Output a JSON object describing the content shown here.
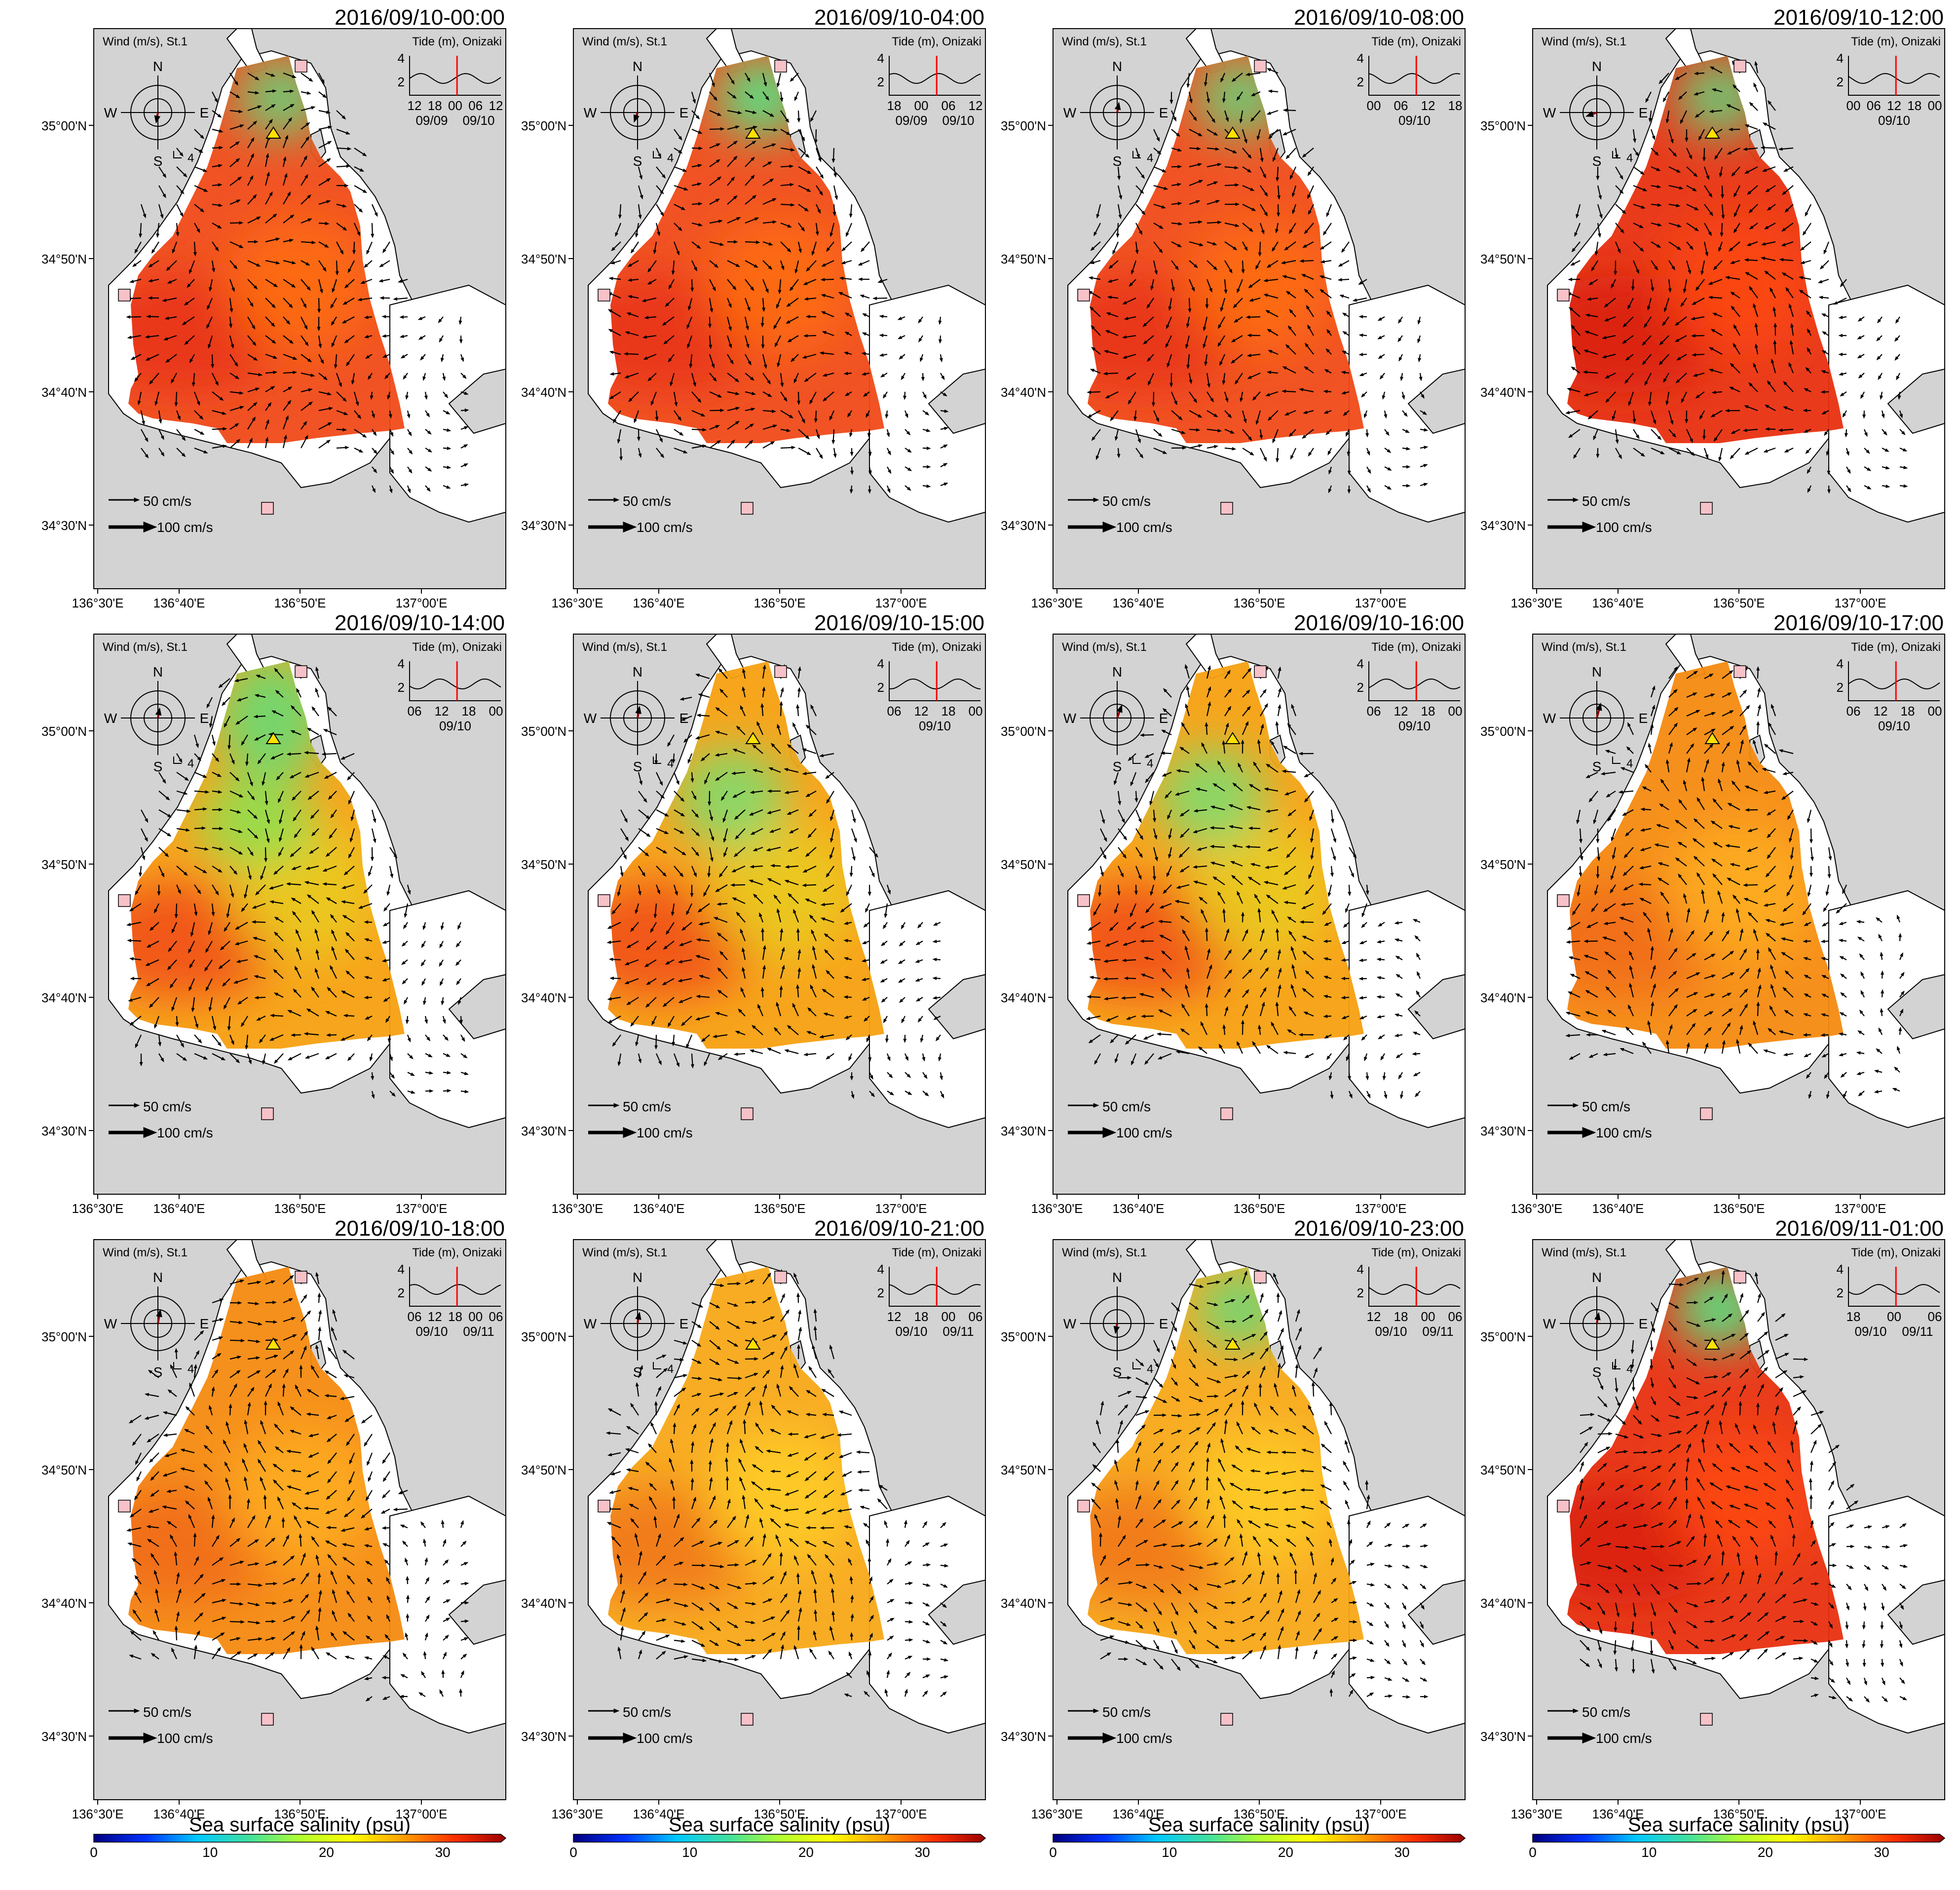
{
  "figure": {
    "panels": [
      {
        "title": "2016/09/10-00:00",
        "wind_dir": 190,
        "wind_mag": 1.0,
        "tide_ticks": [
          "12",
          "18",
          "00",
          "06",
          "12"
        ],
        "tide_dates": [
          "09/09",
          "09/10"
        ],
        "salinity_profile": "high-north-low",
        "low_spot": "top"
      },
      {
        "title": "2016/09/10-04:00",
        "wind_dir": 200,
        "wind_mag": 0.9,
        "tide_ticks": [
          "18",
          "00",
          "06",
          "12"
        ],
        "tide_dates": [
          "09/09",
          "09/10"
        ],
        "salinity_profile": "high-north-low",
        "low_spot": "top-strong"
      },
      {
        "title": "2016/09/10-08:00",
        "wind_dir": 10,
        "wind_mag": 0.9,
        "tide_ticks": [
          "00",
          "06",
          "12",
          "18"
        ],
        "tide_dates": [
          "09/10"
        ],
        "salinity_profile": "high-north-low",
        "low_spot": "top"
      },
      {
        "title": "2016/09/10-12:00",
        "wind_dir": 250,
        "wind_mag": 1.2,
        "tide_ticks": [
          "00",
          "06",
          "12",
          "18",
          "00"
        ],
        "tide_dates": [
          "09/10"
        ],
        "salinity_profile": "very-high",
        "low_spot": "top"
      },
      {
        "title": "2016/09/10-14:00",
        "wind_dir": 10,
        "wind_mag": 0.9,
        "tide_ticks": [
          "06",
          "12",
          "18",
          "00"
        ],
        "tide_dates": [
          "09/10"
        ],
        "salinity_profile": "mixed",
        "low_spot": "north-green"
      },
      {
        "title": "2016/09/10-15:00",
        "wind_dir": 10,
        "wind_mag": 1.3,
        "tide_ticks": [
          "06",
          "12",
          "18",
          "00"
        ],
        "tide_dates": [
          "09/10"
        ],
        "salinity_profile": "mixed",
        "low_spot": "mid-green"
      },
      {
        "title": "2016/09/10-16:00",
        "wind_dir": 20,
        "wind_mag": 1.8,
        "tide_ticks": [
          "06",
          "12",
          "18",
          "00"
        ],
        "tide_dates": [
          "09/10"
        ],
        "salinity_profile": "mixed",
        "low_spot": "mid-green"
      },
      {
        "title": "2016/09/10-17:00",
        "wind_dir": 15,
        "wind_mag": 2.2,
        "tide_ticks": [
          "06",
          "12",
          "18",
          "00"
        ],
        "tide_dates": [
          "09/10"
        ],
        "salinity_profile": "orange",
        "low_spot": "none"
      },
      {
        "title": "2016/09/10-18:00",
        "wind_dir": 10,
        "wind_mag": 1.9,
        "tide_ticks": [
          "06",
          "12",
          "18",
          "00",
          "06"
        ],
        "tide_dates": [
          "09/10",
          "09/11"
        ],
        "salinity_profile": "orange",
        "low_spot": "none"
      },
      {
        "title": "2016/09/10-21:00",
        "wind_dir": 10,
        "wind_mag": 1.2,
        "tide_ticks": [
          "12",
          "18",
          "00",
          "06"
        ],
        "tide_dates": [
          "09/10",
          "09/11"
        ],
        "salinity_profile": "yellow-orange",
        "low_spot": "none"
      },
      {
        "title": "2016/09/10-23:00",
        "wind_dir": 190,
        "wind_mag": 0.9,
        "tide_ticks": [
          "12",
          "18",
          "00",
          "06"
        ],
        "tide_dates": [
          "09/10",
          "09/11"
        ],
        "salinity_profile": "yellow-orange",
        "low_spot": "top"
      },
      {
        "title": "2016/09/11-01:00",
        "wind_dir": 10,
        "wind_mag": 1.1,
        "tide_ticks": [
          "18",
          "00",
          "06"
        ],
        "tide_dates": [
          "09/10",
          "09/11"
        ],
        "salinity_profile": "very-high",
        "low_spot": "top-strong"
      }
    ],
    "labels": {
      "wind": "Wind (m/s), St.1",
      "tide": "Tide (m), Onizaki",
      "compass": {
        "n": "N",
        "s": "S",
        "e": "E",
        "w": "W",
        "scale": "4"
      },
      "tide_y_ticks": [
        "4",
        "2"
      ],
      "ref_50": "50 cm/s",
      "ref_100": "100 cm/s"
    },
    "axes": {
      "x_ticks": [
        "136°30'E",
        "136°40'E",
        "136°50'E",
        "137°00'E"
      ],
      "y_ticks": [
        "35°00'N",
        "34°50'N",
        "34°40'N",
        "34°30'N"
      ]
    },
    "colorbar": {
      "label": "Sea surface salinity (psu)",
      "ticks": [
        "0",
        "10",
        "20",
        "30"
      ],
      "stops": [
        "#00007f",
        "#0030ff",
        "#00c8ff",
        "#40e0a0",
        "#b0ff30",
        "#ffff00",
        "#ffa000",
        "#ff3000",
        "#9a0000"
      ]
    }
  }
}
